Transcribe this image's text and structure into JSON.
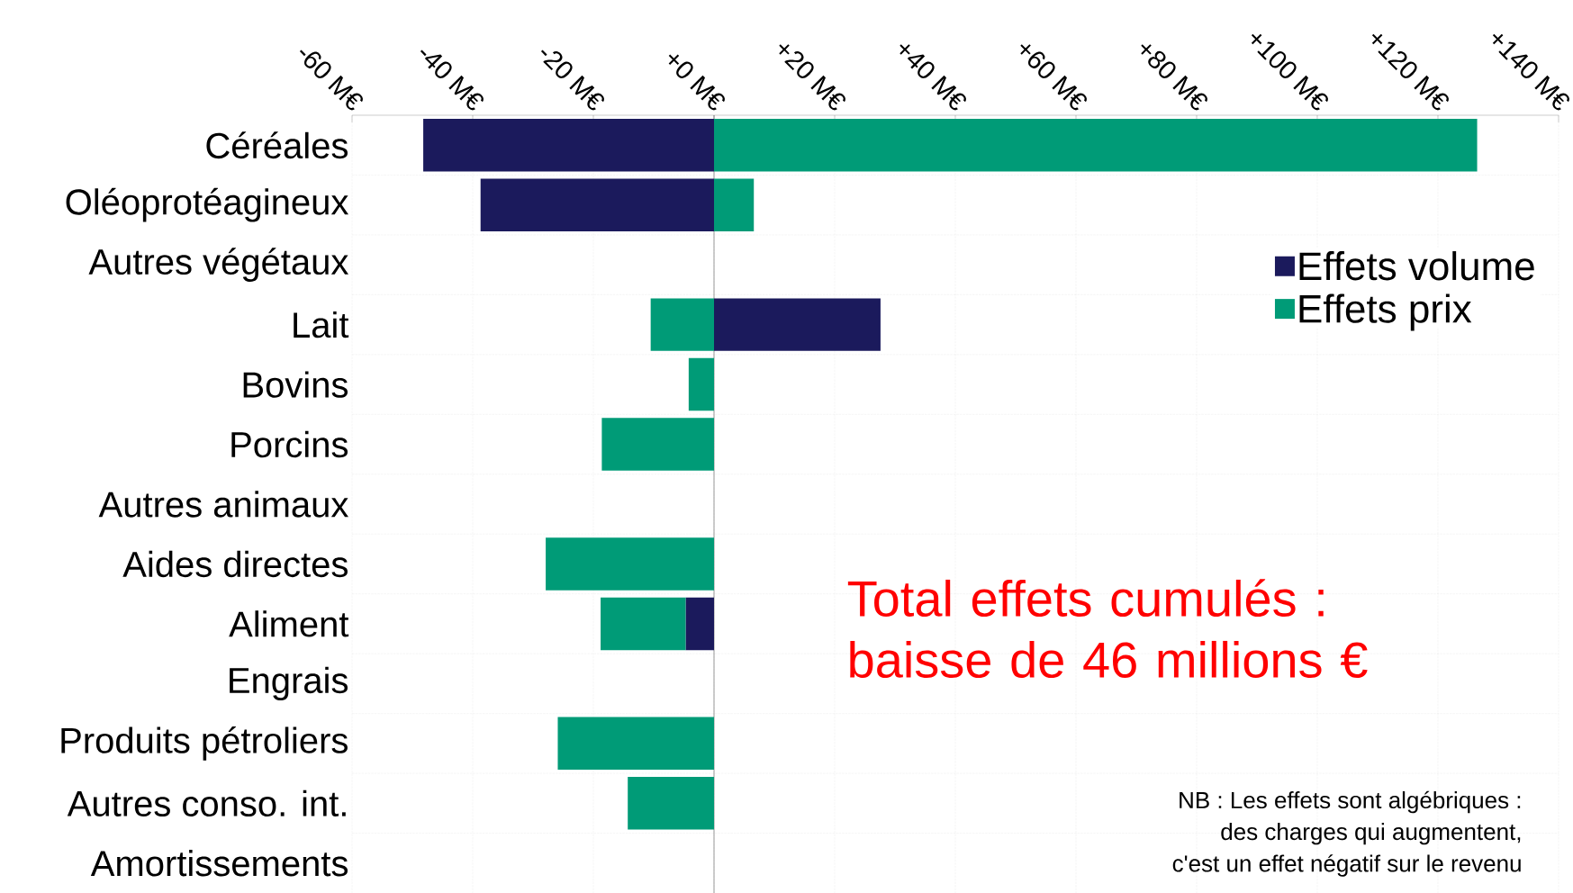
{
  "chart_data": {
    "type": "bar",
    "orientation": "horizontal",
    "stacked": true,
    "categories": [
      "Céréales",
      "Oléoprotéagineux",
      "Autres végétaux",
      "Lait",
      "Bovins",
      "Porcins",
      "Autres animaux",
      "Aides directes",
      "Aliment",
      "Engrais",
      "Produits pétroliers",
      "Autres conso. int.",
      "Amortissements"
    ],
    "series": [
      {
        "name": "Effets volume",
        "color": "#1b1a5c",
        "values": [
          -48.2,
          -38.7,
          null,
          27.6,
          null,
          null,
          null,
          null,
          -4.7,
          null,
          null,
          null,
          null
        ]
      },
      {
        "name": "Effets prix",
        "color": "#009b77",
        "values": [
          126.5,
          6.6,
          null,
          -10.5,
          -4.2,
          -18.6,
          null,
          -27.9,
          -14.1,
          null,
          -25.9,
          -14.3,
          null
        ]
      }
    ],
    "xlim": [
      -60,
      140
    ],
    "xticks": [
      {
        "value": -60,
        "label": "-60 M€"
      },
      {
        "value": -40,
        "label": "-40 M€"
      },
      {
        "value": -20,
        "label": "-20 M€"
      },
      {
        "value": 0,
        "label": "+0 M€"
      },
      {
        "value": 20,
        "label": "+20 M€"
      },
      {
        "value": 40,
        "label": "+40 M€"
      },
      {
        "value": 60,
        "label": "+60 M€"
      },
      {
        "value": 80,
        "label": "+80 M€"
      },
      {
        "value": 100,
        "label": "+100 M€"
      },
      {
        "value": 120,
        "label": "+120 M€"
      },
      {
        "value": 140,
        "label": "+140 M€"
      }
    ],
    "grid": true,
    "legend": "top right",
    "annotations": [
      "Total effets cumulés : baisse de 46 millions €",
      "NB : Les effets sont algébriques :",
      "des charges qui augmentent,",
      "c'est un effet négatif sur le revenu"
    ]
  }
}
